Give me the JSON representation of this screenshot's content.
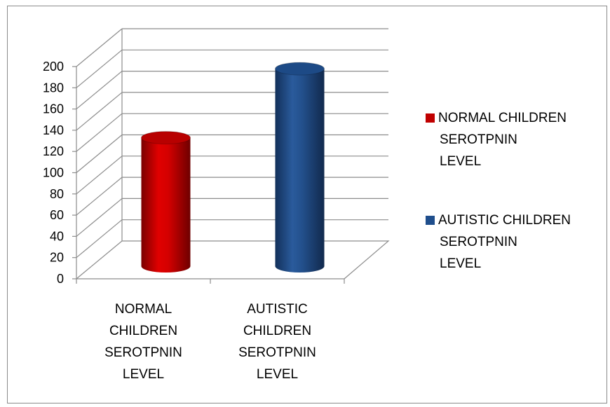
{
  "chart_data": {
    "type": "bar",
    "categories": [
      [
        "NORMAL",
        "CHILDREN",
        "SEROTPNIN",
        "LEVEL"
      ],
      [
        "AUTISTIC",
        "CHILDREN",
        "SEROTPNIN",
        "LEVEL"
      ]
    ],
    "series": [
      {
        "legend_lines": [
          "NORMAL CHILDREN",
          "SEROTPNIN",
          "LEVEL"
        ],
        "values": [
          125,
          null
        ],
        "color": "#c00000"
      },
      {
        "legend_lines": [
          "AUTISTIC  CHILDREN",
          "SEROTPNIN",
          "LEVEL"
        ],
        "values": [
          null,
          190
        ],
        "color": "#1f4e8c"
      }
    ],
    "yticks": [
      0,
      20,
      40,
      60,
      80,
      100,
      120,
      140,
      160,
      180,
      200
    ],
    "ylim": [
      0,
      200
    ],
    "grid": true,
    "style": "3d-cylinder",
    "legend_position": "right"
  }
}
